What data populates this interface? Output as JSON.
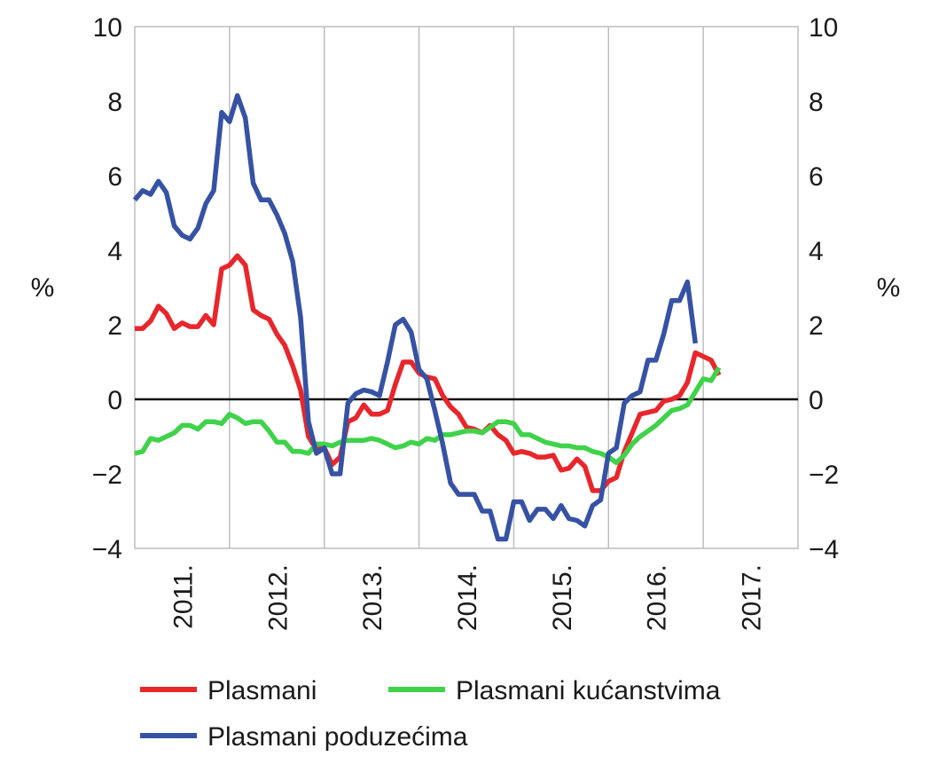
{
  "chart_data": {
    "type": "line",
    "title": "",
    "xlabel": "",
    "ylabel_left": "%",
    "ylabel_right": "%",
    "ylim": [
      -4,
      10
    ],
    "yticks": [
      -4,
      -2,
      0,
      2,
      4,
      6,
      8,
      10
    ],
    "ytick_labels": [
      "−4",
      "−2",
      "0",
      "2",
      "4",
      "6",
      "8",
      "10"
    ],
    "xlim": [
      2010.0,
      2017.0
    ],
    "x_categories": [
      "2011.",
      "2012.",
      "2013.",
      "2014.",
      "2015.",
      "2016.",
      "2017."
    ],
    "grid": "vertical",
    "zero_line": true,
    "legend_position": "bottom",
    "series": [
      {
        "name": "Plasmani",
        "color": "#e8262b",
        "points": [
          [
            2010.0,
            1.9
          ],
          [
            2010.083,
            1.9
          ],
          [
            2010.167,
            2.1
          ],
          [
            2010.25,
            2.5
          ],
          [
            2010.333,
            2.3
          ],
          [
            2010.417,
            1.9
          ],
          [
            2010.5,
            2.05
          ],
          [
            2010.583,
            1.95
          ],
          [
            2010.667,
            1.95
          ],
          [
            2010.75,
            2.25
          ],
          [
            2010.833,
            2.0
          ],
          [
            2010.917,
            3.5
          ],
          [
            2011.0,
            3.6
          ],
          [
            2011.083,
            3.85
          ],
          [
            2011.167,
            3.6
          ],
          [
            2011.25,
            2.4
          ],
          [
            2011.333,
            2.25
          ],
          [
            2011.417,
            2.15
          ],
          [
            2011.5,
            1.75
          ],
          [
            2011.583,
            1.45
          ],
          [
            2011.667,
            0.9
          ],
          [
            2011.75,
            0.25
          ],
          [
            2011.833,
            -1.0
          ],
          [
            2011.917,
            -1.35
          ],
          [
            2012.0,
            -1.3
          ],
          [
            2012.083,
            -1.75
          ],
          [
            2012.167,
            -1.55
          ],
          [
            2012.25,
            -0.6
          ],
          [
            2012.333,
            -0.5
          ],
          [
            2012.417,
            -0.15
          ],
          [
            2012.5,
            -0.4
          ],
          [
            2012.583,
            -0.4
          ],
          [
            2012.667,
            -0.3
          ],
          [
            2012.75,
            0.4
          ],
          [
            2012.833,
            1.0
          ],
          [
            2012.917,
            1.0
          ],
          [
            2013.0,
            0.7
          ],
          [
            2013.083,
            0.6
          ],
          [
            2013.167,
            0.55
          ],
          [
            2013.25,
            0.1
          ],
          [
            2013.333,
            -0.2
          ],
          [
            2013.417,
            -0.4
          ],
          [
            2013.5,
            -0.75
          ],
          [
            2013.583,
            -0.8
          ],
          [
            2013.667,
            -0.9
          ],
          [
            2013.75,
            -0.7
          ],
          [
            2013.833,
            -0.95
          ],
          [
            2013.917,
            -1.1
          ],
          [
            2014.0,
            -1.45
          ],
          [
            2014.083,
            -1.4
          ],
          [
            2014.167,
            -1.45
          ],
          [
            2014.25,
            -1.55
          ],
          [
            2014.333,
            -1.55
          ],
          [
            2014.417,
            -1.5
          ],
          [
            2014.5,
            -1.9
          ],
          [
            2014.583,
            -1.85
          ],
          [
            2014.667,
            -1.6
          ],
          [
            2014.75,
            -1.8
          ],
          [
            2014.833,
            -2.45
          ],
          [
            2014.917,
            -2.45
          ],
          [
            2015.0,
            -2.2
          ],
          [
            2015.083,
            -2.1
          ],
          [
            2015.167,
            -1.4
          ],
          [
            2015.25,
            -0.9
          ],
          [
            2015.333,
            -0.4
          ],
          [
            2015.417,
            -0.35
          ],
          [
            2015.5,
            -0.3
          ],
          [
            2015.583,
            -0.05
          ],
          [
            2015.667,
            0.0
          ],
          [
            2015.75,
            0.1
          ],
          [
            2015.833,
            0.45
          ],
          [
            2015.917,
            1.25
          ],
          [
            2016.0,
            1.15
          ],
          [
            2016.083,
            1.05
          ],
          [
            2016.167,
            0.65
          ]
        ]
      },
      {
        "name": "Plasmani kućanstvima",
        "color": "#3fd24a",
        "points": [
          [
            2010.0,
            -1.45
          ],
          [
            2010.083,
            -1.4
          ],
          [
            2010.167,
            -1.05
          ],
          [
            2010.25,
            -1.1
          ],
          [
            2010.333,
            -1.0
          ],
          [
            2010.417,
            -0.9
          ],
          [
            2010.5,
            -0.7
          ],
          [
            2010.583,
            -0.7
          ],
          [
            2010.667,
            -0.8
          ],
          [
            2010.75,
            -0.6
          ],
          [
            2010.833,
            -0.6
          ],
          [
            2010.917,
            -0.65
          ],
          [
            2011.0,
            -0.4
          ],
          [
            2011.083,
            -0.5
          ],
          [
            2011.167,
            -0.65
          ],
          [
            2011.25,
            -0.6
          ],
          [
            2011.333,
            -0.6
          ],
          [
            2011.417,
            -0.85
          ],
          [
            2011.5,
            -1.15
          ],
          [
            2011.583,
            -1.15
          ],
          [
            2011.667,
            -1.4
          ],
          [
            2011.75,
            -1.4
          ],
          [
            2011.833,
            -1.45
          ],
          [
            2011.917,
            -1.2
          ],
          [
            2012.0,
            -1.2
          ],
          [
            2012.083,
            -1.25
          ],
          [
            2012.167,
            -1.15
          ],
          [
            2012.25,
            -1.1
          ],
          [
            2012.333,
            -1.1
          ],
          [
            2012.417,
            -1.1
          ],
          [
            2012.5,
            -1.05
          ],
          [
            2012.583,
            -1.1
          ],
          [
            2012.667,
            -1.2
          ],
          [
            2012.75,
            -1.3
          ],
          [
            2012.833,
            -1.25
          ],
          [
            2012.917,
            -1.15
          ],
          [
            2013.0,
            -1.2
          ],
          [
            2013.083,
            -1.05
          ],
          [
            2013.167,
            -1.1
          ],
          [
            2013.25,
            -0.95
          ],
          [
            2013.333,
            -0.95
          ],
          [
            2013.417,
            -0.9
          ],
          [
            2013.5,
            -0.85
          ],
          [
            2013.583,
            -0.85
          ],
          [
            2013.667,
            -0.9
          ],
          [
            2013.75,
            -0.75
          ],
          [
            2013.833,
            -0.6
          ],
          [
            2013.917,
            -0.6
          ],
          [
            2014.0,
            -0.65
          ],
          [
            2014.083,
            -0.95
          ],
          [
            2014.167,
            -0.95
          ],
          [
            2014.25,
            -1.05
          ],
          [
            2014.333,
            -1.15
          ],
          [
            2014.417,
            -1.2
          ],
          [
            2014.5,
            -1.25
          ],
          [
            2014.583,
            -1.25
          ],
          [
            2014.667,
            -1.3
          ],
          [
            2014.75,
            -1.3
          ],
          [
            2014.833,
            -1.4
          ],
          [
            2014.917,
            -1.45
          ],
          [
            2015.0,
            -1.55
          ],
          [
            2015.083,
            -1.7
          ],
          [
            2015.167,
            -1.5
          ],
          [
            2015.25,
            -1.2
          ],
          [
            2015.333,
            -1.0
          ],
          [
            2015.417,
            -0.85
          ],
          [
            2015.5,
            -0.7
          ],
          [
            2015.583,
            -0.5
          ],
          [
            2015.667,
            -0.3
          ],
          [
            2015.75,
            -0.25
          ],
          [
            2015.833,
            -0.15
          ],
          [
            2015.917,
            0.2
          ],
          [
            2016.0,
            0.55
          ],
          [
            2016.083,
            0.5
          ],
          [
            2016.167,
            0.85
          ]
        ]
      },
      {
        "name": "Plasmani poduzećima",
        "color": "#3652a4",
        "points": [
          [
            2010.0,
            5.35
          ],
          [
            2010.083,
            5.6
          ],
          [
            2010.167,
            5.5
          ],
          [
            2010.25,
            5.85
          ],
          [
            2010.333,
            5.55
          ],
          [
            2010.417,
            4.65
          ],
          [
            2010.5,
            4.4
          ],
          [
            2010.583,
            4.3
          ],
          [
            2010.667,
            4.6
          ],
          [
            2010.75,
            5.25
          ],
          [
            2010.833,
            5.6
          ],
          [
            2010.917,
            7.7
          ],
          [
            2011.0,
            7.45
          ],
          [
            2011.083,
            8.15
          ],
          [
            2011.167,
            7.55
          ],
          [
            2011.25,
            5.8
          ],
          [
            2011.333,
            5.35
          ],
          [
            2011.417,
            5.35
          ],
          [
            2011.5,
            4.95
          ],
          [
            2011.583,
            4.45
          ],
          [
            2011.667,
            3.7
          ],
          [
            2011.75,
            2.2
          ],
          [
            2011.833,
            -0.6
          ],
          [
            2011.917,
            -1.45
          ],
          [
            2012.0,
            -1.3
          ],
          [
            2012.083,
            -2.0
          ],
          [
            2012.167,
            -2.0
          ],
          [
            2012.25,
            -0.1
          ],
          [
            2012.333,
            0.15
          ],
          [
            2012.417,
            0.25
          ],
          [
            2012.5,
            0.2
          ],
          [
            2012.583,
            0.1
          ],
          [
            2012.667,
            1.0
          ],
          [
            2012.75,
            2.0
          ],
          [
            2012.833,
            2.15
          ],
          [
            2012.917,
            1.8
          ],
          [
            2013.0,
            0.8
          ],
          [
            2013.083,
            0.55
          ],
          [
            2013.167,
            -0.3
          ],
          [
            2013.25,
            -1.2
          ],
          [
            2013.333,
            -2.25
          ],
          [
            2013.417,
            -2.55
          ],
          [
            2013.5,
            -2.55
          ],
          [
            2013.583,
            -2.55
          ],
          [
            2013.667,
            -3.0
          ],
          [
            2013.75,
            -3.0
          ],
          [
            2013.833,
            -3.75
          ],
          [
            2013.917,
            -3.75
          ],
          [
            2014.0,
            -2.75
          ],
          [
            2014.083,
            -2.75
          ],
          [
            2014.167,
            -3.25
          ],
          [
            2014.25,
            -2.95
          ],
          [
            2014.333,
            -2.95
          ],
          [
            2014.417,
            -3.2
          ],
          [
            2014.5,
            -2.85
          ],
          [
            2014.583,
            -3.2
          ],
          [
            2014.667,
            -3.25
          ],
          [
            2014.75,
            -3.4
          ],
          [
            2014.833,
            -2.85
          ],
          [
            2014.917,
            -2.7
          ],
          [
            2015.0,
            -1.45
          ],
          [
            2015.083,
            -1.3
          ],
          [
            2015.167,
            -0.1
          ],
          [
            2015.25,
            0.1
          ],
          [
            2015.333,
            0.2
          ],
          [
            2015.417,
            1.05
          ],
          [
            2015.5,
            1.05
          ],
          [
            2015.583,
            1.75
          ],
          [
            2015.667,
            2.65
          ],
          [
            2015.75,
            2.65
          ],
          [
            2015.833,
            3.15
          ],
          [
            2015.917,
            1.5
          ]
        ]
      }
    ]
  }
}
